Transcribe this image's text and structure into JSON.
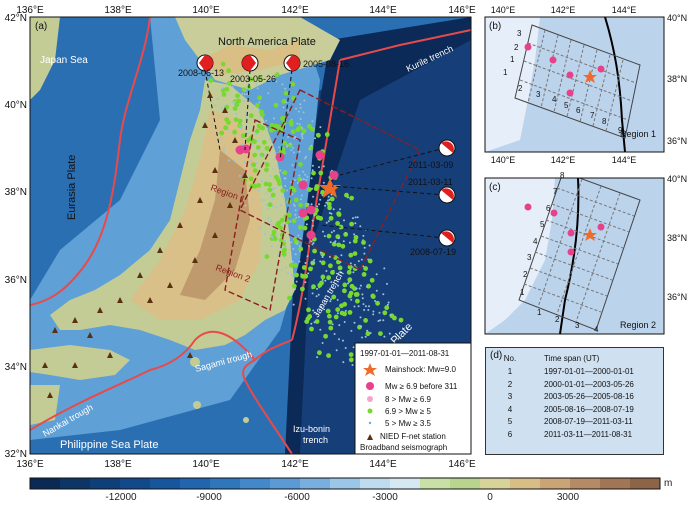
{
  "main_map": {
    "panel_label": "(a)",
    "lon_ticks": [
      "136°E",
      "138°E",
      "140°E",
      "142°E",
      "144°E",
      "146°E"
    ],
    "lat_ticks": [
      "42°N",
      "40°N",
      "38°N",
      "36°N",
      "34°N",
      "32°N"
    ],
    "labels": {
      "japan_sea": "Japan Sea",
      "north_america": "North America Plate",
      "eurasia": "Eurasia Plate",
      "pacific": "Pacific Plate",
      "philippine": "Philippine Sea Plate",
      "kurile": "Kurile trench",
      "japan_trench": "Japan trench",
      "sagami": "Sagami trough",
      "nankai": "Nankai trough",
      "izu1": "Izu-bonin",
      "izu2": "trench",
      "region1": "Region 1",
      "region2": "Region 2"
    },
    "beachball_dates": [
      "2008-06-13",
      "2003-05-26",
      "2005-08-16",
      "2011-03-09",
      "2011-03-11",
      "2008-07-19"
    ],
    "legend": {
      "period": "1997-01-01—2011-08-31",
      "mainshock": "Mainshock: Mw=9.0",
      "big": "Mw ≥ 6.9 before 311",
      "mid": "8 > Mw ≥ 6.9",
      "small": "6.9 > Mw ≥ 5",
      "tiny": "5 > Mw ≥ 3.5",
      "station1": "NIED F-net station",
      "station2": "Broadband seismograph"
    }
  },
  "inset_b": {
    "label": "(b)",
    "lon_ticks": [
      "140°E",
      "142°E",
      "144°E"
    ],
    "lat_ticks": [
      "40°N",
      "38°N",
      "36°N"
    ],
    "region": "Region 1",
    "numbers": [
      "1",
      "2",
      "3",
      "4",
      "5",
      "6",
      "7",
      "8",
      "9",
      "1",
      "2",
      "3"
    ]
  },
  "inset_c": {
    "label": "(c)",
    "lat_ticks": [
      "40°N",
      "38°N",
      "36°N"
    ],
    "region": "Region 2",
    "numbers": [
      "1",
      "2",
      "3",
      "4",
      "5",
      "6",
      "7",
      "8",
      "1",
      "2",
      "3",
      "4"
    ]
  },
  "inset_d": {
    "label": "(d)",
    "header_no": "No.",
    "header_span": "Time span (UT)",
    "rows": [
      {
        "no": "1",
        "span": "1997-01-01—2000-01-01"
      },
      {
        "no": "2",
        "span": "2000-01-01—2003-05-26"
      },
      {
        "no": "3",
        "span": "2003-05-26—2005-08-16"
      },
      {
        "no": "4",
        "span": "2005-08-16—2008-07-19"
      },
      {
        "no": "5",
        "span": "2008-07-19—2011-03-11"
      },
      {
        "no": "6",
        "span": "2011-03-11—2011-08-31"
      }
    ]
  },
  "colorbar": {
    "ticks": [
      "-12000",
      "-9000",
      "-6000",
      "-3000",
      "0",
      "3000"
    ],
    "unit": "m",
    "colors": [
      "#0a2a55",
      "#0d3566",
      "#0f3f78",
      "#12498a",
      "#17559c",
      "#2065ad",
      "#2f77bd",
      "#4388cb",
      "#5c9ad5",
      "#79afdf",
      "#9cc6e8",
      "#bfdcef",
      "#d6e9f3",
      "#c8dfa8",
      "#b8d48e",
      "#d8d39a",
      "#d7bd86",
      "#c9a477",
      "#b58a66",
      "#a07656",
      "#8c6549"
    ]
  }
}
